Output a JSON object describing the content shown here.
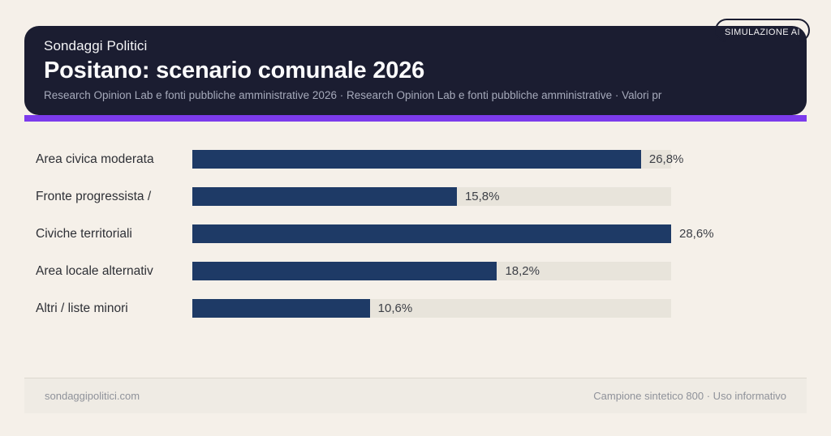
{
  "badge": {
    "label": "SIMULAZIONE AI"
  },
  "header": {
    "kicker": "Sondaggi Politici",
    "title": "Positano: scenario comunale 2026",
    "subtitle": "Research Opinion Lab e fonti pubbliche amministrative 2026 · Research Opinion Lab e fonti pubbliche amministrative · Valori pr"
  },
  "chart_data": {
    "type": "bar",
    "orientation": "horizontal",
    "title": "Positano: scenario comunale 2026",
    "categories": [
      "Area civica moderata",
      "Fronte progressista /",
      "Civiche territoriali",
      "Area locale alternativ",
      "Altri / liste minori"
    ],
    "values": [
      26.8,
      15.8,
      28.6,
      18.2,
      10.6
    ],
    "value_labels": [
      "26,8%",
      "15,8%",
      "28,6%",
      "18,2%",
      "10,6%"
    ],
    "scale_max": 28.6,
    "unit": "%",
    "bar_color": "#1e3a66",
    "track_color": "#e8e4db",
    "grid": false,
    "legend": false
  },
  "footer": {
    "left": "sondaggipolitici.com",
    "right": "Campione sintetico 800 · Uso informativo"
  },
  "colors": {
    "background": "#f5f0e9",
    "card": "#1b1d31",
    "accent": "#7c3bec",
    "bar": "#1e3a66",
    "track": "#e8e4db"
  }
}
